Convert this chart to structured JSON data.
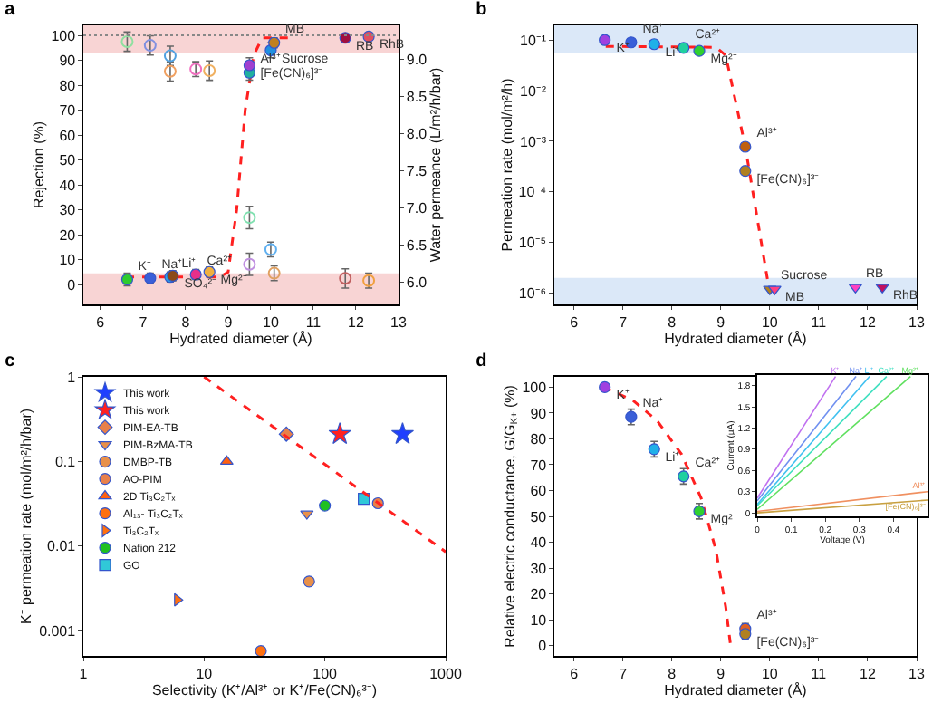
{
  "chart_data": [
    {
      "type": "scatter",
      "title": "a",
      "xlabel": "Hydrated diameter (Å)",
      "ylabel": "Rejection (%)",
      "y2label": "Water permeance (L/m²/h/bar)",
      "xlim": [
        5.6,
        13
      ],
      "xticks": [
        6,
        7,
        8,
        9,
        10,
        11,
        12,
        13
      ],
      "ylim": [
        -8,
        104
      ],
      "yticks": [
        0,
        10,
        20,
        30,
        40,
        50,
        60,
        70,
        80,
        90,
        100
      ],
      "y2lim": [
        5.7,
        9.46
      ],
      "y2ticks": [
        {
          "value": 6,
          "label": "6.0"
        },
        {
          "value": 6.5,
          "label": "6.5"
        },
        {
          "value": 7,
          "label": "7.0"
        },
        {
          "value": 7.5,
          "label": "7.5"
        },
        {
          "value": 8,
          "label": "8.0"
        },
        {
          "value": 8.5,
          "label": "8.5"
        },
        {
          "value": 9,
          "label": "9.0"
        }
      ],
      "series": [
        {
          "type": "line",
          "color": "#ff2020",
          "line_style": "dashed",
          "marker": "none",
          "x": [
            6.6,
            8.8,
            9.0,
            9.2,
            9.4,
            9.6,
            9.8,
            10.1,
            10.5
          ],
          "values": [
            3,
            3,
            5,
            30,
            70,
            92,
            99,
            99,
            99
          ]
        },
        {
          "axis": "y2",
          "marker": "circle-open",
          "x": [
            6.63,
            7.17,
            7.64,
            7.64,
            8.24,
            8.56,
            9.5,
            9.5,
            10.0,
            10.08,
            11.75,
            12.3
          ],
          "values": [
            9.24,
            9.19,
            9.05,
            8.84,
            8.87,
            8.85,
            6.87,
            6.24,
            6.44,
            6.12,
            6.05,
            6.02
          ],
          "errors": [
            0.13,
            0.13,
            0.13,
            0.13,
            0.1,
            0.13,
            0.15,
            0.15,
            0.1,
            0.1,
            0.13,
            0.1
          ],
          "colors": [
            "#8fe0a0",
            "#8090e0",
            "#50a0e0",
            "#f0a060",
            "#f070c0",
            "#f0b060",
            "#80e0b0",
            "#c090e0",
            "#60b0f0",
            "#e0a060",
            "#c06060",
            "#f0a040"
          ]
        },
        {
          "marker": "circle",
          "x": [
            6.63,
            7.17,
            7.64,
            7.7,
            8.24,
            8.56,
            9.5,
            9.5,
            10.0,
            10.08,
            11.75,
            12.3
          ],
          "values": [
            2,
            2.5,
            3,
            3.5,
            4,
            5,
            85,
            88,
            94,
            97,
            99,
            99.5
          ],
          "errors": [
            2.5,
            2,
            2,
            2,
            2,
            2,
            3,
            3,
            3,
            2,
            null,
            null
          ],
          "colors": [
            "#2ecc2e",
            "#3a5fd8",
            "#2aa7e0",
            "#8b4a1a",
            "#e8308a",
            "#f0b040",
            "#20b0a0",
            "#a040d0",
            "#2090e0",
            "#c08020",
            "#a01040",
            "#e05060"
          ]
        }
      ],
      "annotations": [
        {
          "text": "RB",
          "x": 11.75,
          "y": 99
        },
        {
          "text": "K⁺",
          "x": 6.63,
          "y": 2
        },
        {
          "text": "SO₄²⁻",
          "x": 7.7,
          "y": 3.5
        },
        {
          "text": "Na⁺",
          "x": 7.17,
          "y": 2.5
        },
        {
          "text": "Mg²⁺",
          "x": 8.56,
          "y": 5
        },
        {
          "text": "Li⁺",
          "x": 7.64,
          "y": 3
        },
        {
          "text": "[Fe(CN)₆]³⁻",
          "x": 9.5,
          "y": 88
        },
        {
          "text": "Ca²⁺",
          "x": 8.24,
          "y": 4
        },
        {
          "text": "Sucrose",
          "x": 10.0,
          "y": 94
        },
        {
          "text": "Al³⁺",
          "x": 9.5,
          "y": 85
        },
        {
          "text": "RhB",
          "x": 12.3,
          "y": 99.5
        },
        {
          "text": "MB",
          "x": 10.08,
          "y": 97
        }
      ],
      "ref_lines": [
        {
          "axis": "y",
          "value": 100,
          "color": "#888888",
          "line_style": "dotted"
        }
      ],
      "bands": [
        {
          "axis": "y",
          "from": 93,
          "to": 104,
          "color": "#f8d4d4"
        },
        {
          "axis": "y",
          "from": -8,
          "to": 4.5,
          "color": "#f8d4d4"
        }
      ]
    },
    {
      "type": "scatter",
      "title": "b",
      "xlabel": "Hydrated diameter (Å)",
      "ylabel": "Permeation rate (mol/m²/h)",
      "log": "y",
      "xlim": [
        5.6,
        13
      ],
      "xticks": [
        6,
        7,
        8,
        9,
        10,
        11,
        12,
        13
      ],
      "ylim": [
        6e-07,
        0.195
      ],
      "yticks": [
        {
          "value": 1e-06,
          "label": "10⁻⁶"
        },
        {
          "value": 1e-05,
          "label": "10⁻⁵"
        },
        {
          "value": 0.0001,
          "label": "10⁻⁴"
        },
        {
          "value": 0.001,
          "label": "10⁻³"
        },
        {
          "value": 0.01,
          "label": "10⁻²"
        },
        {
          "value": 0.1,
          "label": "10⁻¹"
        }
      ],
      "series": [
        {
          "type": "line",
          "color": "#ff2020",
          "line_style": "dashed",
          "marker": "none",
          "x": [
            6.65,
            8.9,
            9.1,
            9.5,
            10.0
          ],
          "values": [
            0.075,
            0.072,
            0.05,
            0.00078,
            1e-06
          ]
        },
        {
          "marker": "circle",
          "x": [
            6.63,
            7.17,
            7.64,
            8.24,
            8.56,
            9.5,
            9.5
          ],
          "values": [
            0.1,
            0.09,
            0.083,
            0.07,
            0.061,
            0.00078,
            0.00026
          ],
          "colors": [
            "#a040e0",
            "#3a5fd8",
            "#20b0e8",
            "#20d0a0",
            "#30d030",
            "#c06010",
            "#b08020"
          ]
        },
        {
          "marker": "triangle-down",
          "x": [
            10.0,
            10.1,
            11.75,
            12.3
          ],
          "values": [
            1.2e-06,
            1.2e-06,
            1.3e-06,
            1.3e-06
          ],
          "colors": [
            "#b08020",
            "#ff4080",
            "#ff40c0",
            "#c01060"
          ]
        }
      ],
      "annotations": [
        {
          "text": "K⁺",
          "x": 6.63,
          "y": 0.1
        },
        {
          "text": "Na⁺",
          "x": 7.17,
          "y": 0.09
        },
        {
          "text": "Li⁺",
          "x": 7.64,
          "y": 0.083
        },
        {
          "text": "Ca²⁺",
          "x": 8.24,
          "y": 0.07
        },
        {
          "text": "Mg²⁺",
          "x": 8.56,
          "y": 0.061
        },
        {
          "text": "Al³⁺",
          "x": 9.5,
          "y": 0.00078
        },
        {
          "text": "[Fe(CN)₆]³⁻",
          "x": 9.5,
          "y": 0.00026
        },
        {
          "text": "Sucrose",
          "x": 10.0,
          "y": 1.2e-06
        },
        {
          "text": "MB",
          "x": 10.1,
          "y": 1.2e-06
        },
        {
          "text": "RB",
          "x": 11.75,
          "y": 1.3e-06
        },
        {
          "text": "RhB",
          "x": 12.3,
          "y": 1.3e-06
        }
      ],
      "bands": [
        {
          "axis": "y",
          "from": 0.055,
          "to": 0.195,
          "color": "#dbe8f8"
        },
        {
          "axis": "y",
          "from": 6e-07,
          "to": 2e-06,
          "color": "#dbe8f8"
        }
      ]
    },
    {
      "type": "scatter",
      "title": "c",
      "xlabel": "Selectivity (K⁺/Al³⁺ or K⁺/Fe(CN)₆³⁻)",
      "ylabel": "K⁺ permeation rate (mol/m²/h/bar)",
      "log": "xy",
      "legend": "top left",
      "xlim": [
        1,
        1000
      ],
      "xticks": [
        1,
        10,
        100,
        1000
      ],
      "ylim": [
        0.0005,
        1
      ],
      "yticks": [
        0.001,
        0.01,
        0.1,
        1
      ],
      "series": [
        {
          "name": "This work",
          "marker": "star",
          "color": "#1f3fff",
          "x": [
            440
          ],
          "values": [
            0.21
          ]
        },
        {
          "name": "This work",
          "marker": "star",
          "color": "#ff2020",
          "x": [
            133
          ],
          "values": [
            0.21
          ]
        },
        {
          "name": "PIM-EA-TB",
          "marker": "diamond",
          "color": "#e8804a",
          "x": [
            48
          ],
          "values": [
            0.21
          ]
        },
        {
          "name": "PIM-BzMA-TB",
          "marker": "triangle-down",
          "color": "#e8904a",
          "x": [
            71
          ],
          "values": [
            0.024
          ]
        },
        {
          "name": "DMBP-TB",
          "color": "#e8904a",
          "x": [
            74
          ],
          "values": [
            0.0038
          ]
        },
        {
          "name": "AO-PIM",
          "marker": "circle",
          "color": "#e8804a",
          "x": [
            275
          ],
          "values": [
            0.032
          ]
        },
        {
          "name": "2D Ti₃C₂Tₓ",
          "marker": "triangle",
          "color": "#ff6010",
          "x": [
            15.4
          ],
          "values": [
            0.1
          ]
        },
        {
          "name": "Al₁₃- Ti₃C₂Tₓ",
          "color": "#ff7010",
          "x": [
            29.5
          ],
          "values": [
            0.00057
          ]
        },
        {
          "name": "Ti₃C₂Tₓ",
          "marker": "triangle-right",
          "color": "#ff7010",
          "x": [
            6
          ],
          "values": [
            0.0023
          ]
        },
        {
          "name": "Nafion 212",
          "color": "#20c020",
          "x": [
            100
          ],
          "values": [
            0.03
          ]
        },
        {
          "name": "GO",
          "marker": "square",
          "color": "#30c8d8",
          "x": [
            210
          ],
          "values": [
            0.036
          ]
        },
        {
          "type": "line",
          "color": "#ff2020",
          "line_style": "dashed",
          "marker": "none",
          "x": [
            10,
            1000
          ],
          "values": [
            1,
            0.0085
          ]
        }
      ]
    },
    {
      "type": "scatter",
      "title": "d",
      "xlabel": "Hydrated diameter (Å)",
      "ylabel": "Relative electric conductance, G/G$_{K+}$ (%)",
      "xlim": [
        5.6,
        13
      ],
      "xticks": [
        6,
        7,
        8,
        9,
        10,
        11,
        12,
        13
      ],
      "ylim": [
        -4,
        104
      ],
      "yticks": [
        0,
        10,
        20,
        30,
        40,
        50,
        60,
        70,
        80,
        90,
        100
      ],
      "series": [
        {
          "type": "line",
          "color": "#ff2020",
          "line_style": "dashed",
          "marker": "none",
          "x": [
            6.6,
            7.2,
            7.7,
            8.2,
            8.6,
            8.9,
            9.1,
            9.2
          ],
          "values": [
            100,
            95,
            87,
            74,
            57,
            37,
            15,
            0
          ]
        },
        {
          "marker": "circle",
          "x": [
            6.63,
            7.17,
            7.64,
            8.24,
            8.56,
            9.5,
            9.5
          ],
          "values": [
            100,
            88.5,
            76,
            65.5,
            52,
            6.5,
            4.5
          ],
          "errors": [
            null,
            3,
            3,
            3,
            3,
            2,
            2
          ],
          "colors": [
            "#a040e0",
            "#3a5fd8",
            "#20b0e8",
            "#20d0a0",
            "#30d030",
            "#e06020",
            "#b08020"
          ]
        }
      ],
      "annotations": [
        {
          "text": "K⁺",
          "x": 6.63,
          "y": 100
        },
        {
          "text": "Na⁺",
          "x": 7.17,
          "y": 88.5
        },
        {
          "text": "Li⁺",
          "x": 7.64,
          "y": 76
        },
        {
          "text": "Ca²⁺",
          "x": 8.24,
          "y": 65.5
        },
        {
          "text": "Mg²⁺",
          "x": 8.56,
          "y": 52
        },
        {
          "text": "Al³⁺",
          "x": 9.5,
          "y": 6.5
        },
        {
          "text": "[Fe(CN)₆]³⁻",
          "x": 9.5,
          "y": 4.5
        }
      ]
    },
    {
      "type": "line",
      "xlabel": "Voltage (V)",
      "ylabel": "Current (μA)",
      "xlim": [
        0,
        0.5
      ],
      "xticks": [
        0,
        0.1,
        0.2,
        0.3,
        0.4
      ],
      "ylim": [
        -0.05,
        1.95
      ],
      "yticks": [
        0,
        0.3,
        0.6,
        0.9,
        1.2,
        1.5,
        1.8
      ],
      "series": [
        {
          "name": "K⁺",
          "color": "#c070f0",
          "x": [
            0,
            0.23
          ],
          "values": [
            0.21,
            1.93
          ]
        },
        {
          "name": "Na⁺",
          "color": "#7090f0",
          "x": [
            0,
            0.29
          ],
          "values": [
            0.17,
            1.93
          ]
        },
        {
          "name": "Li⁺",
          "color": "#40c0f0",
          "x": [
            0,
            0.33
          ],
          "values": [
            0.12,
            1.93
          ]
        },
        {
          "name": "Ca²⁺",
          "color": "#40e0c0",
          "x": [
            0,
            0.38
          ],
          "values": [
            0.1,
            1.93
          ]
        },
        {
          "name": "Mg²⁺",
          "color": "#60e060",
          "x": [
            0,
            0.45
          ],
          "values": [
            0.05,
            1.93
          ]
        },
        {
          "name": "Al³⁺",
          "color": "#f09060",
          "x": [
            0,
            0.5
          ],
          "values": [
            0.02,
            0.3
          ]
        },
        {
          "name": "[Fe(CN)₆]³⁻",
          "color": "#c8a040",
          "x": [
            0,
            0.5
          ],
          "values": [
            0,
            0.18
          ]
        }
      ]
    }
  ]
}
